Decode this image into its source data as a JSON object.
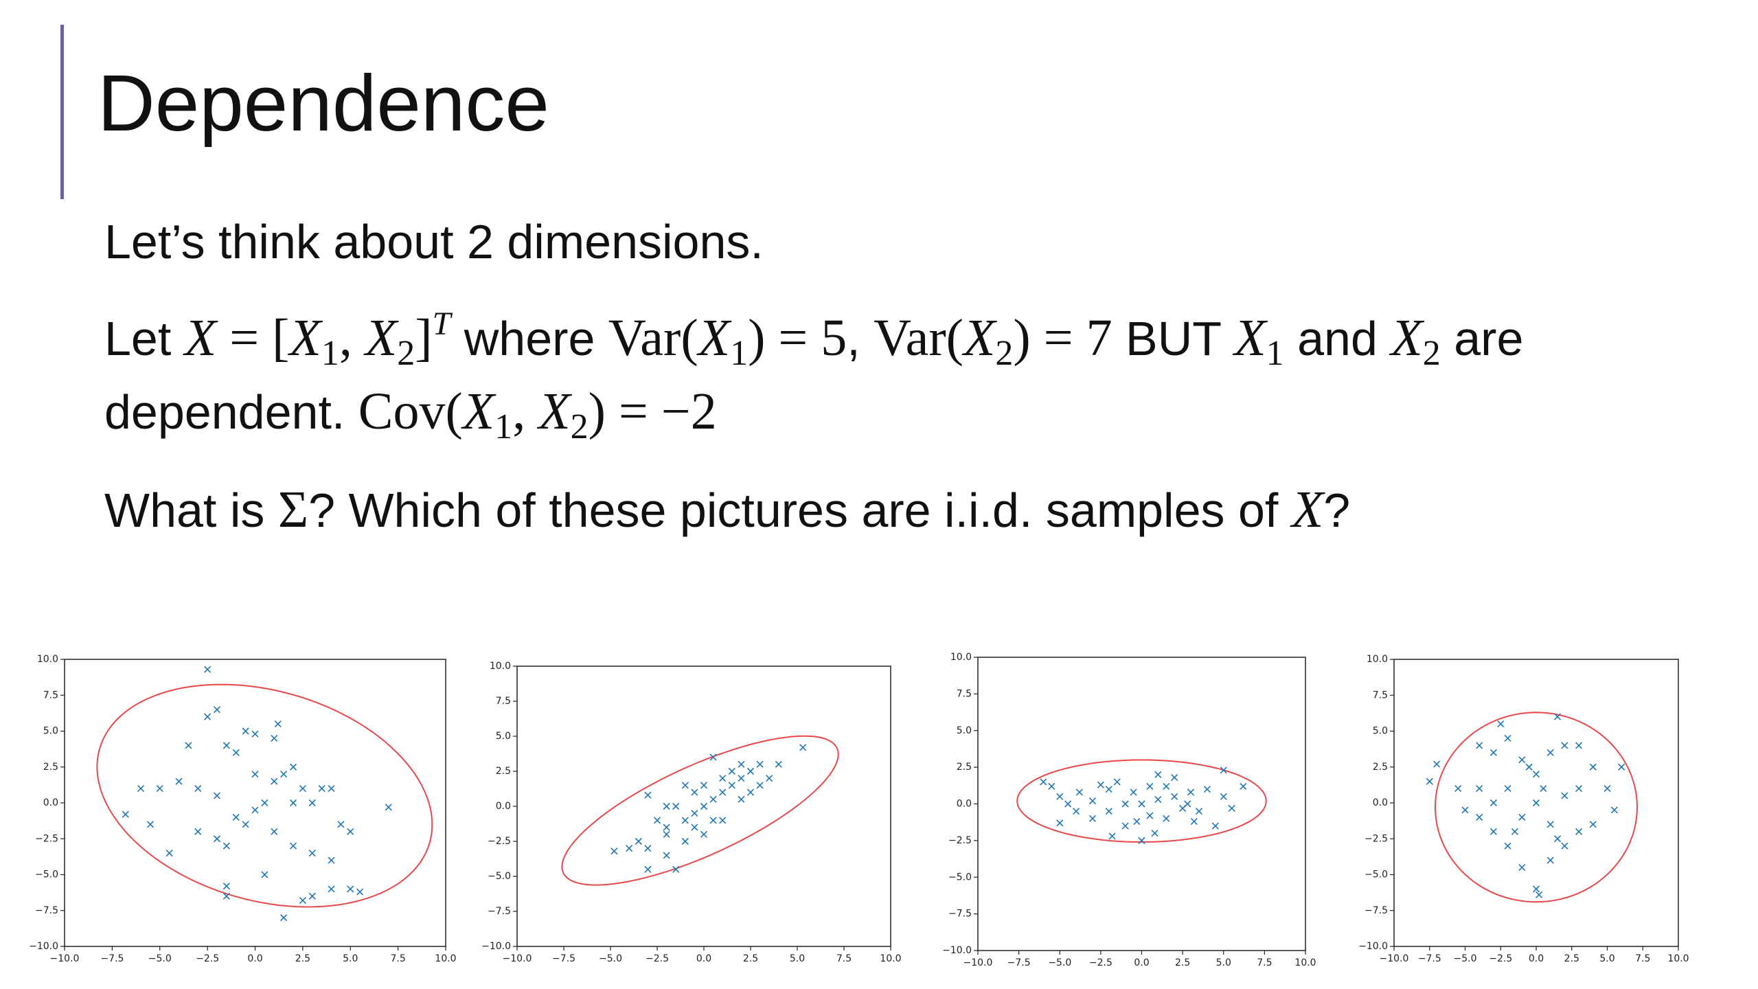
{
  "title": "Dependence",
  "body": [
    {
      "runs": [
        {
          "text": "Let’s think about 2 dimensions.",
          "style": "plain"
        }
      ]
    },
    {
      "runs": [
        {
          "text": "Let ",
          "style": "plain"
        },
        {
          "text": "X",
          "style": "mi"
        },
        {
          "text": " = [",
          "style": "m"
        },
        {
          "text": "X",
          "style": "mi"
        },
        {
          "text": "1",
          "style": "sub"
        },
        {
          "text": ", ",
          "style": "m"
        },
        {
          "text": "X",
          "style": "mi"
        },
        {
          "text": "2",
          "style": "sub"
        },
        {
          "text": "]",
          "style": "m"
        },
        {
          "text": "T",
          "style": "sup"
        },
        {
          "text": " where ",
          "style": "plain"
        },
        {
          "text": "Var(",
          "style": "m"
        },
        {
          "text": "X",
          "style": "mi"
        },
        {
          "text": "1",
          "style": "sub"
        },
        {
          "text": ") = 5",
          "style": "m"
        },
        {
          "text": ", ",
          "style": "plain"
        },
        {
          "text": "Var(",
          "style": "m"
        },
        {
          "text": "X",
          "style": "mi"
        },
        {
          "text": "2",
          "style": "sub"
        },
        {
          "text": ") = 7",
          "style": "m"
        },
        {
          "text": " BUT ",
          "style": "plain"
        },
        {
          "text": "X",
          "style": "mi"
        },
        {
          "text": "1",
          "style": "sub"
        },
        {
          "text": " and ",
          "style": "plain"
        },
        {
          "text": "X",
          "style": "mi"
        },
        {
          "text": "2",
          "style": "sub"
        },
        {
          "text": " are dependent. ",
          "style": "plain"
        },
        {
          "text": "Cov(",
          "style": "m"
        },
        {
          "text": "X",
          "style": "mi"
        },
        {
          "text": "1",
          "style": "sub"
        },
        {
          "text": ", ",
          "style": "m"
        },
        {
          "text": "X",
          "style": "mi"
        },
        {
          "text": "2",
          "style": "sub"
        },
        {
          "text": ") = −2",
          "style": "m"
        }
      ]
    },
    {
      "runs": [
        {
          "text": "What is ",
          "style": "plain"
        },
        {
          "text": "Σ",
          "style": "m"
        },
        {
          "text": "? Which of these pictures are i.i.d. samples of ",
          "style": "plain"
        },
        {
          "text": "X",
          "style": "mi"
        },
        {
          "text": "?",
          "style": "plain"
        }
      ]
    }
  ],
  "chart_data": [
    {
      "type": "scatter",
      "color": "#1f77b4",
      "ellipse_color": "#e8484a",
      "x": [
        -2.5,
        -2.5,
        -2,
        -1.5,
        -1,
        -0.5,
        0,
        1,
        1.2,
        -3.5,
        -4,
        -5,
        -6,
        -6.8,
        -5.5,
        -4.5,
        -3,
        -2,
        -1.5,
        -1,
        0,
        0.5,
        1,
        1.5,
        2,
        2.5,
        3,
        3.5,
        4,
        4.5,
        5,
        4,
        3,
        2,
        0.5,
        -1.5,
        -1.5,
        1.5,
        2.5,
        3,
        4,
        5,
        5.5,
        7,
        -2,
        0,
        -0.5,
        1,
        2,
        -3
      ],
      "y": [
        9.3,
        6,
        6.5,
        4,
        3.5,
        5,
        4.8,
        4.5,
        5.5,
        4,
        1.5,
        1,
        1,
        -0.8,
        -1.5,
        -3.5,
        -2,
        -2.5,
        -3,
        -1,
        -0.5,
        0,
        1.5,
        2,
        2.5,
        1,
        0,
        1,
        1,
        -1.5,
        -2,
        -4,
        -3.5,
        -3,
        -5,
        -5.8,
        -6.5,
        -8,
        -6.8,
        -6.5,
        -6,
        -6,
        -6.2,
        -0.3,
        0.5,
        2,
        -1.5,
        -2,
        0,
        1
      ],
      "ellipse": {
        "cx": 0.5,
        "cy": 0.5,
        "rx": 9.4,
        "ry": 7,
        "angle": -32
      },
      "xlim": [
        -10,
        10
      ],
      "ylim": [
        -10,
        10
      ],
      "xticks": [
        {
          "value": -10,
          "label": "−10.0"
        },
        {
          "value": -7.5,
          "label": "−7.5"
        },
        {
          "value": -5,
          "label": "−5.0"
        },
        {
          "value": -2.5,
          "label": "−2.5"
        },
        {
          "value": 0,
          "label": "0.0"
        },
        2.5,
        {
          "value": 5,
          "label": "5.0"
        },
        7.5,
        {
          "value": 10,
          "label": "10.0"
        }
      ],
      "yticks": [
        {
          "value": -10,
          "label": "−10.0"
        },
        {
          "value": -7.5,
          "label": "−7.5"
        },
        {
          "value": -5,
          "label": "−5.0"
        },
        {
          "value": -2.5,
          "label": "−2.5"
        },
        {
          "value": 0,
          "label": "0.0"
        },
        2.5,
        {
          "value": 5,
          "label": "5.0"
        },
        7.5,
        {
          "value": 10,
          "label": "10.0"
        }
      ]
    },
    {
      "type": "scatter",
      "color": "#1f77b4",
      "ellipse_color": "#e8484a",
      "x": [
        -3,
        -3.5,
        -4,
        -3,
        -2,
        -1.5,
        -2,
        -1,
        -0.5,
        0,
        0.5,
        1,
        1.5,
        2,
        2.5,
        3,
        4,
        5.3,
        2,
        0.5,
        -1,
        -2,
        -2.5,
        1,
        0,
        -1,
        2,
        3,
        -4.8,
        1.5,
        -0.5,
        0.5,
        -3,
        3.5,
        -1.5,
        1,
        0,
        -2,
        2.5,
        -0.5
      ],
      "y": [
        0.8,
        -2.5,
        -3,
        -4.5,
        -3.5,
        -4.5,
        -2,
        -1,
        -0.5,
        0,
        0.5,
        1,
        1.5,
        2,
        2.5,
        3,
        3,
        4.2,
        3,
        3.5,
        1.5,
        0,
        -1,
        -1,
        -2,
        -2.5,
        0.5,
        1.5,
        -3.2,
        2.5,
        1,
        -1,
        -3,
        2,
        0,
        2,
        1.5,
        -1.5,
        1,
        -1.5
      ],
      "ellipse": {
        "cx": -0.2,
        "cy": -0.3,
        "rx": 8.6,
        "ry": 3,
        "angle": 33
      },
      "xlim": [
        -10,
        10
      ],
      "ylim": [
        -10,
        10
      ],
      "xticks": [
        {
          "value": -10,
          "label": "−10.0"
        },
        {
          "value": -7.5,
          "label": "−7.5"
        },
        {
          "value": -5,
          "label": "−5.0"
        },
        {
          "value": -2.5,
          "label": "−2.5"
        },
        {
          "value": 0,
          "label": "0.0"
        },
        2.5,
        {
          "value": 5,
          "label": "5.0"
        },
        7.5,
        {
          "value": 10,
          "label": "10.0"
        }
      ],
      "yticks": [
        {
          "value": -10,
          "label": "−10.0"
        },
        {
          "value": -7.5,
          "label": "−7.5"
        },
        {
          "value": -5,
          "label": "−5.0"
        },
        {
          "value": -2.5,
          "label": "−2.5"
        },
        {
          "value": 0,
          "label": "0.0"
        },
        2.5,
        {
          "value": 5,
          "label": "5.0"
        },
        7.5,
        {
          "value": 10,
          "label": "10.0"
        }
      ]
    },
    {
      "type": "scatter",
      "color": "#1f77b4",
      "ellipse_color": "#e8484a",
      "x": [
        -6,
        -5.5,
        -5,
        -4,
        -5,
        -3,
        -3,
        -2,
        -2,
        -1.5,
        -1,
        -1,
        -0.5,
        0,
        0,
        0.5,
        0.5,
        1,
        1,
        1.5,
        2,
        2,
        2.5,
        3,
        3.5,
        4,
        4.5,
        5,
        5,
        5.5,
        6.2,
        -1.8,
        -2.5,
        0.8,
        3.2,
        -3.8,
        1.5,
        -0.3,
        2.8,
        -4.5
      ],
      "y": [
        1.5,
        1.2,
        0.5,
        -0.5,
        -1.3,
        0.2,
        -1,
        1,
        -0.5,
        1.5,
        0,
        -1.5,
        0.8,
        0,
        -2.5,
        1.2,
        -0.8,
        2,
        0.3,
        -1,
        0.5,
        1.8,
        -0.3,
        0.8,
        -0.5,
        1,
        -1.5,
        0.5,
        2.3,
        -0.3,
        1.2,
        -2.2,
        1.3,
        -2,
        -1.2,
        0.8,
        1.2,
        -1.2,
        0,
        0
      ],
      "ellipse": {
        "cx": 0,
        "cy": 0.2,
        "rx": 7.6,
        "ry": 2.8,
        "angle": 0
      },
      "xlim": [
        -10,
        10
      ],
      "ylim": [
        -10,
        10
      ],
      "xticks": [
        {
          "value": -10,
          "label": "−10.0"
        },
        {
          "value": -7.5,
          "label": "−7.5"
        },
        {
          "value": -5,
          "label": "−5.0"
        },
        {
          "value": -2.5,
          "label": "−2.5"
        },
        {
          "value": 0,
          "label": "0.0"
        },
        2.5,
        {
          "value": 5,
          "label": "5.0"
        },
        7.5,
        {
          "value": 10,
          "label": "10.0"
        }
      ],
      "yticks": [
        {
          "value": -10,
          "label": "−10.0"
        },
        {
          "value": -7.5,
          "label": "−7.5"
        },
        {
          "value": -5,
          "label": "−5.0"
        },
        {
          "value": -2.5,
          "label": "−2.5"
        },
        {
          "value": 0,
          "label": "0.0"
        },
        2.5,
        {
          "value": 5,
          "label": "5.0"
        },
        7.5,
        {
          "value": 10,
          "label": "10.0"
        }
      ]
    },
    {
      "type": "scatter",
      "color": "#1f77b4",
      "ellipse_color": "#e8484a",
      "x": [
        -7.5,
        -7,
        -2.5,
        1.5,
        -4,
        -3,
        -2,
        -1,
        0,
        1,
        2,
        3,
        4,
        5,
        5.5,
        4,
        3,
        2,
        1,
        0,
        0.2,
        -1,
        -2,
        -3,
        -4,
        -5,
        -5.5,
        -4,
        -3,
        -2,
        -1,
        0,
        0.5,
        1,
        2,
        3,
        -1.5,
        1.5,
        -0.5,
        6
      ],
      "y": [
        1.5,
        2.7,
        5.5,
        6,
        4,
        3.5,
        4.5,
        3,
        2,
        3.5,
        4,
        4,
        2.5,
        1,
        -0.5,
        -1.5,
        -2,
        -3,
        -4,
        -6,
        -6.4,
        -4.5,
        -3,
        -2,
        -1,
        -0.5,
        1,
        1,
        0,
        1,
        -1,
        0,
        1,
        -1.5,
        0.5,
        1,
        -2,
        -2.5,
        2.5,
        2.5
      ],
      "ellipse": {
        "cx": 0,
        "cy": -0.3,
        "rx": 7.1,
        "ry": 6.6,
        "angle": 0
      },
      "xlim": [
        -10,
        10
      ],
      "ylim": [
        -10,
        10
      ],
      "xticks": [
        {
          "value": -10,
          "label": "−10.0"
        },
        {
          "value": -7.5,
          "label": "−7.5"
        },
        {
          "value": -5,
          "label": "−5.0"
        },
        {
          "value": -2.5,
          "label": "−2.5"
        },
        {
          "value": 0,
          "label": "0.0"
        },
        2.5,
        {
          "value": 5,
          "label": "5.0"
        },
        7.5,
        {
          "value": 10,
          "label": "10.0"
        }
      ],
      "yticks": [
        {
          "value": -10,
          "label": "−10.0"
        },
        {
          "value": -7.5,
          "label": "−7.5"
        },
        {
          "value": -5,
          "label": "−5.0"
        },
        {
          "value": -2.5,
          "label": "−2.5"
        },
        {
          "value": 0,
          "label": "0.0"
        },
        2.5,
        {
          "value": 5,
          "label": "5.0"
        },
        7.5,
        {
          "value": 10,
          "label": "10.0"
        }
      ]
    }
  ]
}
